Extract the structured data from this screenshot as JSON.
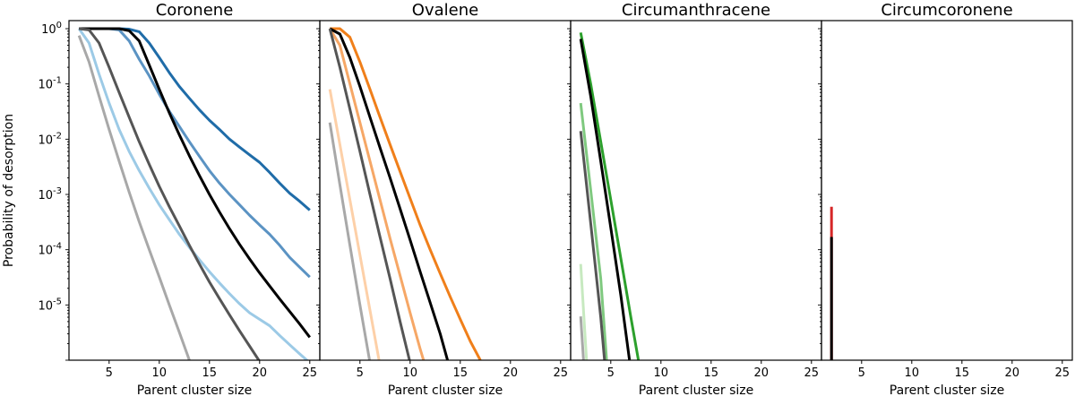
{
  "chart_data": [
    {
      "type": "line",
      "title": "Coronene",
      "xlabel": "Parent cluster size",
      "ylabel": "Probability of desorption",
      "xlim": [
        1,
        26
      ],
      "ylim": [
        1e-06,
        1.4
      ],
      "yscale": "log",
      "xticks": [
        5,
        10,
        15,
        20,
        25
      ],
      "yticks": [
        1,
        0.1,
        0.01,
        0.001,
        0.0001,
        1e-05
      ],
      "xtick_labels": [
        "5",
        "10",
        "15",
        "20",
        "25"
      ],
      "ytick_labels": [
        "10^0",
        "10^-1",
        "10^-2",
        "10^-3",
        "10^-4",
        "10^-5"
      ],
      "legend": "none",
      "series": [
        {
          "color": "#1f6ca8",
          "points": [
            [
              2,
              1
            ],
            [
              3,
              1
            ],
            [
              4,
              1
            ],
            [
              5,
              1
            ],
            [
              6,
              1
            ],
            [
              7,
              0.98
            ],
            [
              8,
              0.88
            ],
            [
              9,
              0.55
            ],
            [
              10,
              0.3
            ],
            [
              11,
              0.16
            ],
            [
              12,
              0.09
            ],
            [
              13,
              0.055
            ],
            [
              14,
              0.034
            ],
            [
              15,
              0.022
            ],
            [
              16,
              0.015
            ],
            [
              17,
              0.01
            ],
            [
              18,
              0.0072
            ],
            [
              19,
              0.0052
            ],
            [
              20,
              0.0038
            ],
            [
              21,
              0.0025
            ],
            [
              22,
              0.0016
            ],
            [
              23,
              0.00105
            ],
            [
              24,
              0.00075
            ],
            [
              25,
              0.00052
            ]
          ]
        },
        {
          "color": "#5b93c3",
          "points": [
            [
              2,
              1
            ],
            [
              3,
              1
            ],
            [
              4,
              1
            ],
            [
              5,
              1
            ],
            [
              6,
              0.95
            ],
            [
              7,
              0.6
            ],
            [
              8,
              0.28
            ],
            [
              9,
              0.14
            ],
            [
              10,
              0.065
            ],
            [
              11,
              0.032
            ],
            [
              12,
              0.017
            ],
            [
              13,
              0.009
            ],
            [
              14,
              0.0049
            ],
            [
              15,
              0.0027
            ],
            [
              16,
              0.0016
            ],
            [
              17,
              0.001
            ],
            [
              18,
              0.00065
            ],
            [
              19,
              0.00042
            ],
            [
              20,
              0.00028
            ],
            [
              21,
              0.00019
            ],
            [
              22,
              0.00012
            ],
            [
              23,
              7.25e-05
            ],
            [
              24,
              4.8e-05
            ],
            [
              25,
              3.2e-05
            ]
          ]
        },
        {
          "color": "#9ccae6",
          "points": [
            [
              2,
              1
            ],
            [
              3,
              0.55
            ],
            [
              4,
              0.15
            ],
            [
              5,
              0.045
            ],
            [
              6,
              0.015
            ],
            [
              7,
              0.006
            ],
            [
              8,
              0.0027
            ],
            [
              9,
              0.0013
            ],
            [
              10,
              0.00065
            ],
            [
              11,
              0.00035
            ],
            [
              12,
              0.00019
            ],
            [
              13,
              0.00011
            ],
            [
              14,
              6.6e-05
            ],
            [
              15,
              4e-05
            ],
            [
              16,
              2.5e-05
            ],
            [
              17,
              1.6e-05
            ],
            [
              18,
              1.05e-05
            ],
            [
              19,
              7.2e-06
            ],
            [
              20,
              5.5e-06
            ],
            [
              21,
              4.2e-06
            ],
            [
              22,
              2.8e-06
            ],
            [
              23,
              1.9e-06
            ],
            [
              24,
              1.3e-06
            ],
            [
              25,
              9e-07
            ]
          ]
        },
        {
          "color": "#000000",
          "points": [
            [
              2,
              1
            ],
            [
              3,
              1
            ],
            [
              4,
              1
            ],
            [
              5,
              1
            ],
            [
              6,
              1
            ],
            [
              7,
              0.92
            ],
            [
              8,
              0.6
            ],
            [
              9,
              0.22
            ],
            [
              10,
              0.08
            ],
            [
              11,
              0.03
            ],
            [
              12,
              0.012
            ],
            [
              13,
              0.005
            ],
            [
              14,
              0.0022
            ],
            [
              15,
              0.001
            ],
            [
              16,
              0.00048
            ],
            [
              17,
              0.00024
            ],
            [
              18,
              0.000125
            ],
            [
              19,
              6.8e-05
            ],
            [
              20,
              3.8e-05
            ],
            [
              21,
              2.2e-05
            ],
            [
              22,
              1.28e-05
            ],
            [
              23,
              7.6e-06
            ],
            [
              24,
              4.5e-06
            ],
            [
              25,
              2.6e-06
            ]
          ]
        },
        {
          "color": "#555555",
          "points": [
            [
              2,
              1
            ],
            [
              3,
              0.95
            ],
            [
              4,
              0.55
            ],
            [
              5,
              0.2
            ],
            [
              6,
              0.07
            ],
            [
              7,
              0.025
            ],
            [
              8,
              0.009
            ],
            [
              9,
              0.0035
            ],
            [
              10,
              0.0014
            ],
            [
              11,
              0.0006
            ],
            [
              12,
              0.00027
            ],
            [
              13,
              0.00012
            ],
            [
              14,
              5.5e-05
            ],
            [
              15,
              2.6e-05
            ],
            [
              16,
              1.3e-05
            ],
            [
              17,
              6.6e-06
            ],
            [
              18,
              3.4e-06
            ],
            [
              19,
              1.8e-06
            ],
            [
              20,
              9.5e-07
            ],
            [
              21,
              5e-07
            ]
          ]
        },
        {
          "color": "#a8a8a8",
          "points": [
            [
              2,
              0.75
            ],
            [
              3,
              0.25
            ],
            [
              4,
              0.06
            ],
            [
              5,
              0.015
            ],
            [
              6,
              0.004
            ],
            [
              7,
              0.0011
            ],
            [
              8,
              0.00032
            ],
            [
              9,
              0.0001
            ],
            [
              10,
              3.2e-05
            ],
            [
              11,
              1e-05
            ],
            [
              12,
              3.2e-06
            ],
            [
              13,
              1e-06
            ]
          ]
        }
      ]
    },
    {
      "type": "line",
      "title": "Ovalene",
      "xlabel": "Parent cluster size",
      "xlim": [
        1,
        26
      ],
      "ylim": [
        1e-06,
        1.4
      ],
      "yscale": "log",
      "xticks": [
        5,
        10,
        15,
        20,
        25
      ],
      "xtick_labels": [
        "5",
        "10",
        "15",
        "20",
        "25"
      ],
      "legend": "none",
      "series": [
        {
          "color": "#f07f1a",
          "points": [
            [
              2,
              1
            ],
            [
              3,
              1
            ],
            [
              4,
              0.7
            ],
            [
              5,
              0.25
            ],
            [
              6,
              0.08
            ],
            [
              7,
              0.025
            ],
            [
              8,
              0.008
            ],
            [
              9,
              0.0026
            ],
            [
              10,
              0.00085
            ],
            [
              11,
              0.00028
            ],
            [
              12,
              0.0001
            ],
            [
              13,
              3.7e-05
            ],
            [
              14,
              1.4e-05
            ],
            [
              15,
              5.5e-06
            ],
            [
              16,
              2.2e-06
            ],
            [
              17,
              1e-06
            ]
          ]
        },
        {
          "color": "#f6a766",
          "points": [
            [
              2,
              1
            ],
            [
              3,
              0.5
            ],
            [
              4,
              0.1
            ],
            [
              5,
              0.02
            ],
            [
              6,
              0.004
            ],
            [
              7,
              0.0008
            ],
            [
              8,
              0.00016
            ],
            [
              9,
              3.4e-05
            ],
            [
              10,
              7.2e-06
            ],
            [
              11,
              1.6e-06
            ],
            [
              11.5,
              8e-07
            ]
          ]
        },
        {
          "color": "#fdd0a8",
          "points": [
            [
              2,
              0.08
            ],
            [
              3,
              0.008
            ],
            [
              4,
              0.0008
            ],
            [
              5,
              8e-05
            ],
            [
              6,
              8e-06
            ],
            [
              7,
              8e-07
            ]
          ]
        },
        {
          "color": "#000000",
          "points": [
            [
              2,
              1
            ],
            [
              3,
              0.8
            ],
            [
              4,
              0.3
            ],
            [
              5,
              0.09
            ],
            [
              6,
              0.025
            ],
            [
              7,
              0.007
            ],
            [
              8,
              0.002
            ],
            [
              9,
              0.00055
            ],
            [
              10,
              0.00015
            ],
            [
              11,
              4e-05
            ],
            [
              12,
              1.1e-05
            ],
            [
              13,
              3e-06
            ],
            [
              13.8,
              9e-07
            ]
          ]
        },
        {
          "color": "#555555",
          "points": [
            [
              2,
              1
            ],
            [
              3,
              0.2
            ],
            [
              4,
              0.035
            ],
            [
              5,
              0.006
            ],
            [
              6,
              0.001
            ],
            [
              7,
              0.00017
            ],
            [
              8,
              3e-05
            ],
            [
              9,
              5e-06
            ],
            [
              10,
              9e-07
            ]
          ]
        },
        {
          "color": "#a8a8a8",
          "points": [
            [
              2,
              0.02
            ],
            [
              3,
              0.0015
            ],
            [
              4,
              0.00012
            ],
            [
              5,
              1e-05
            ],
            [
              6,
              9e-07
            ]
          ]
        }
      ]
    },
    {
      "type": "line",
      "title": "Circumanthracene",
      "xlabel": "Parent cluster size",
      "xlim": [
        1,
        26
      ],
      "ylim": [
        1e-06,
        1.4
      ],
      "yscale": "log",
      "xticks": [
        5,
        10,
        15,
        20,
        25
      ],
      "xtick_labels": [
        "5",
        "10",
        "15",
        "20",
        "25"
      ],
      "legend": "none",
      "series": [
        {
          "color": "#2ca02c",
          "points": [
            [
              2,
              0.85
            ],
            [
              3,
              0.1
            ],
            [
              4,
              0.009
            ],
            [
              5,
              0.0008
            ],
            [
              6,
              7e-05
            ],
            [
              7,
              6e-06
            ],
            [
              7.8,
              9e-07
            ]
          ]
        },
        {
          "color": "#7fc97f",
          "points": [
            [
              2,
              0.045
            ],
            [
              3,
              0.0012
            ],
            [
              4,
              3e-05
            ],
            [
              4.6,
              9e-07
            ]
          ]
        },
        {
          "color": "#c7e9c0",
          "points": [
            [
              2,
              5.5e-05
            ],
            [
              2.6,
              9e-07
            ]
          ]
        },
        {
          "color": "#000000",
          "points": [
            [
              2,
              0.65
            ],
            [
              3,
              0.06
            ],
            [
              4,
              0.004
            ],
            [
              5,
              0.00025
            ],
            [
              6,
              1.5e-05
            ],
            [
              6.9,
              9e-07
            ]
          ]
        },
        {
          "color": "#555555",
          "points": [
            [
              2,
              0.014
            ],
            [
              3,
              0.0003
            ],
            [
              4,
              6e-06
            ],
            [
              4.4,
              9e-07
            ]
          ]
        },
        {
          "color": "#a8a8a8",
          "points": [
            [
              2,
              6.2e-06
            ],
            [
              2.3,
              9e-07
            ]
          ]
        }
      ]
    },
    {
      "type": "line",
      "title": "Circumcoronene",
      "xlabel": "Parent cluster size",
      "xlim": [
        1,
        26
      ],
      "ylim": [
        1e-06,
        1.4
      ],
      "yscale": "log",
      "xticks": [
        5,
        10,
        15,
        20,
        25
      ],
      "xtick_labels": [
        "5",
        "10",
        "15",
        "20",
        "25"
      ],
      "legend": "none",
      "series": [
        {
          "color": "#d62728",
          "points": [
            [
              2,
              0.0006
            ],
            [
              2,
              9e-07
            ]
          ]
        },
        {
          "color": "#000000",
          "points": [
            [
              2,
              0.00017
            ],
            [
              2,
              9e-07
            ]
          ]
        }
      ]
    }
  ]
}
